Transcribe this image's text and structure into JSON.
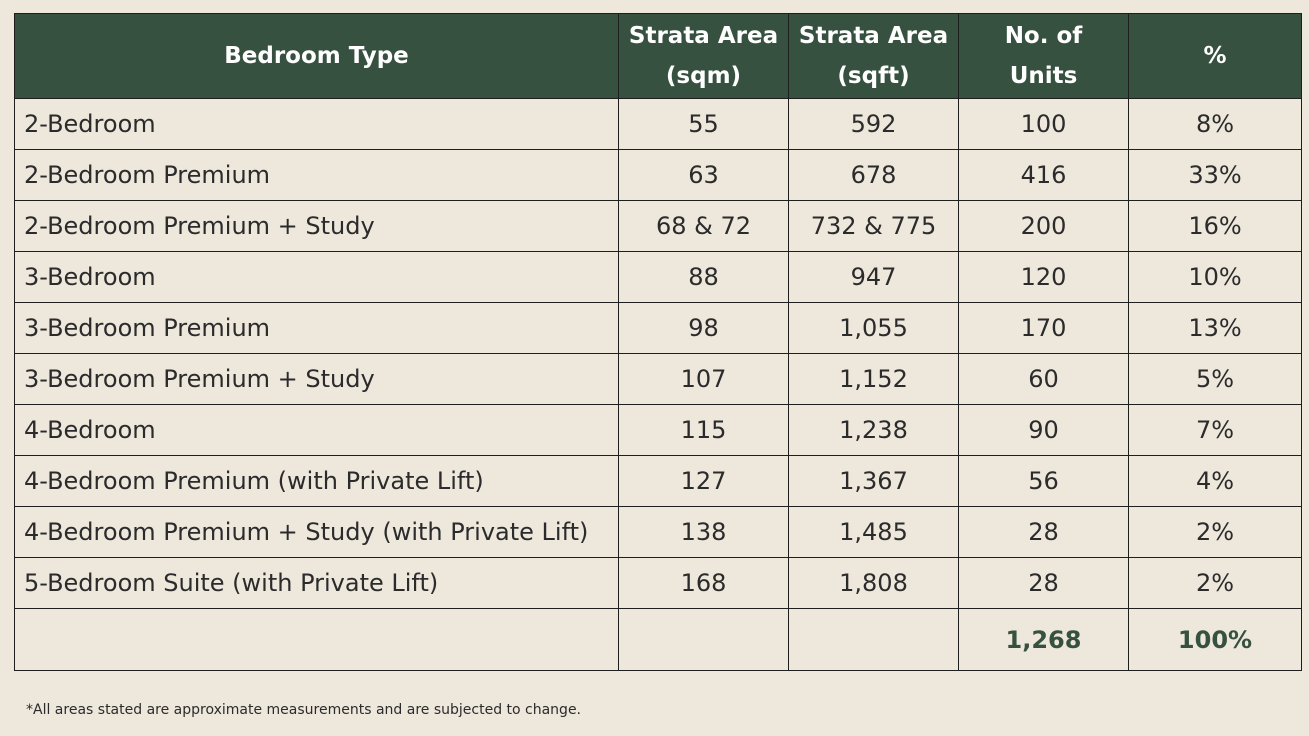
{
  "table": {
    "headers": [
      {
        "line1": "Bedroom Type",
        "line2": ""
      },
      {
        "line1": "Strata Area",
        "line2": "(sqm)"
      },
      {
        "line1": "Strata Area",
        "line2": "(sqft)"
      },
      {
        "line1": "No. of",
        "line2": "Units"
      },
      {
        "line1": "%",
        "line2": ""
      }
    ],
    "rows": [
      [
        "2-Bedroom",
        "55",
        "592",
        "100",
        "8%"
      ],
      [
        "2-Bedroom Premium",
        "63",
        "678",
        "416",
        "33%"
      ],
      [
        "2-Bedroom Premium + Study",
        "68 & 72",
        "732 & 775",
        "200",
        "16%"
      ],
      [
        "3-Bedroom",
        "88",
        "947",
        "120",
        "10%"
      ],
      [
        "3-Bedroom Premium",
        "98",
        "1,055",
        "170",
        "13%"
      ],
      [
        "3-Bedroom Premium + Study",
        "107",
        "1,152",
        "60",
        "5%"
      ],
      [
        "4-Bedroom",
        "115",
        "1,238",
        "90",
        "7%"
      ],
      [
        "4-Bedroom Premium (with Private Lift)",
        "127",
        "1,367",
        "56",
        "4%"
      ],
      [
        "4-Bedroom Premium + Study (with Private Lift)",
        "138",
        "1,485",
        "28",
        "2%"
      ],
      [
        "5-Bedroom Suite (with Private Lift)",
        "168",
        "1,808",
        "28",
        "2%"
      ]
    ],
    "total": [
      "",
      "",
      "",
      "1,268",
      "100%"
    ]
  },
  "footnote": "*All areas stated are approximate measurements and are subjected to change.",
  "colors": {
    "header_bg": "#36513f",
    "page_bg": "#ede7dc",
    "total_text": "#36513f"
  }
}
